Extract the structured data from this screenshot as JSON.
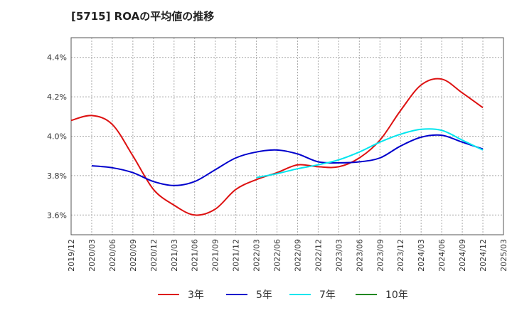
{
  "chart_data": {
    "type": "line",
    "title": "[5715]  ROAの平均値の推移",
    "xlabel": "",
    "ylabel": "",
    "ylim": [
      3.5,
      4.5
    ],
    "yticks": [
      3.6,
      3.8,
      4.0,
      4.2,
      4.4
    ],
    "ytick_labels": [
      "3.6%",
      "3.8%",
      "4.0%",
      "4.2%",
      "4.4%"
    ],
    "xticks": [
      "2019/12",
      "2020/03",
      "2020/06",
      "2020/09",
      "2020/12",
      "2021/03",
      "2021/06",
      "2021/09",
      "2021/12",
      "2022/03",
      "2022/06",
      "2022/09",
      "2022/12",
      "2023/03",
      "2023/06",
      "2023/09",
      "2023/12",
      "2024/03",
      "2024/06",
      "2024/09",
      "2024/12",
      "2025/03"
    ],
    "grid": true,
    "legend_position": "bottom",
    "series": [
      {
        "name": "3年",
        "color": "#dd1111",
        "x": [
          "2019/12",
          "2020/03",
          "2020/06",
          "2020/09",
          "2020/12",
          "2021/03",
          "2021/06",
          "2021/09",
          "2021/12",
          "2022/03",
          "2022/06",
          "2022/09",
          "2022/12",
          "2023/03",
          "2023/06",
          "2023/09",
          "2023/12",
          "2024/03",
          "2024/06",
          "2024/09",
          "2024/12"
        ],
        "values": [
          4.08,
          4.105,
          4.06,
          3.9,
          3.73,
          3.65,
          3.6,
          3.63,
          3.73,
          3.78,
          3.815,
          3.855,
          3.845,
          3.845,
          3.89,
          3.98,
          4.13,
          4.26,
          4.29,
          4.22,
          4.145
        ]
      },
      {
        "name": "5年",
        "color": "#0000cc",
        "x": [
          "2020/03",
          "2020/06",
          "2020/09",
          "2020/12",
          "2021/03",
          "2021/06",
          "2021/09",
          "2021/12",
          "2022/03",
          "2022/06",
          "2022/09",
          "2022/12",
          "2023/03",
          "2023/06",
          "2023/09",
          "2023/12",
          "2024/03",
          "2024/06",
          "2024/09",
          "2024/12"
        ],
        "values": [
          3.85,
          3.84,
          3.815,
          3.77,
          3.75,
          3.77,
          3.83,
          3.89,
          3.92,
          3.93,
          3.91,
          3.87,
          3.865,
          3.87,
          3.89,
          3.95,
          3.995,
          4.005,
          3.97,
          3.935
        ]
      },
      {
        "name": "7年",
        "color": "#00e5ee",
        "x": [
          "2022/03",
          "2022/06",
          "2022/09",
          "2022/12",
          "2023/03",
          "2023/06",
          "2023/09",
          "2023/12",
          "2024/03",
          "2024/06",
          "2024/09",
          "2024/12"
        ],
        "values": [
          3.79,
          3.81,
          3.835,
          3.855,
          3.88,
          3.92,
          3.97,
          4.01,
          4.035,
          4.03,
          3.98,
          3.93
        ]
      },
      {
        "name": "10年",
        "color": "#228822",
        "x": [],
        "values": []
      }
    ]
  }
}
